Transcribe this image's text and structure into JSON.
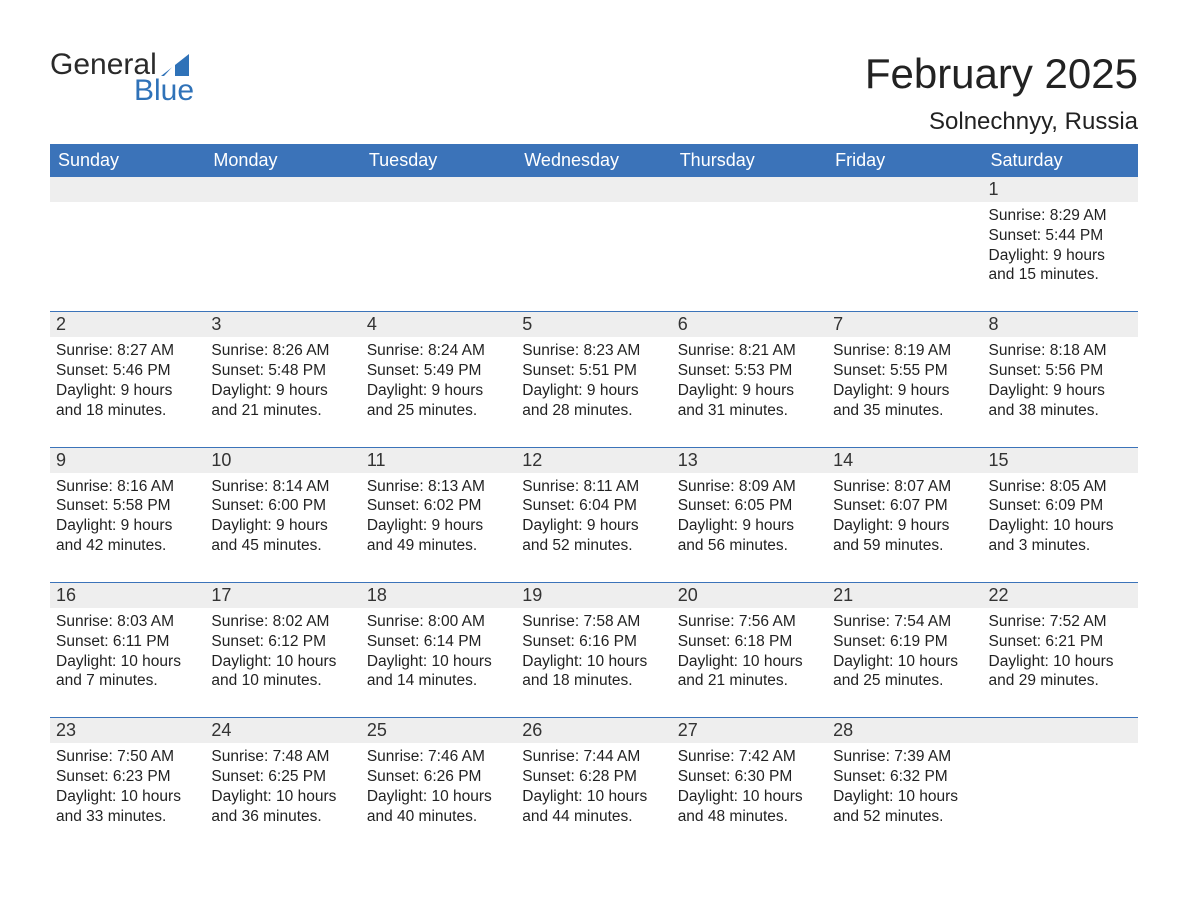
{
  "logo": {
    "word1": "General",
    "word2": "Blue"
  },
  "title": "February 2025",
  "location": "Solnechnyy, Russia",
  "weekdays": [
    "Sunday",
    "Monday",
    "Tuesday",
    "Wednesday",
    "Thursday",
    "Friday",
    "Saturday"
  ],
  "colors": {
    "header_bg": "#3b73b9",
    "header_text": "#ffffff",
    "daynum_bg": "#eeeeee",
    "row_sep": "#3b73b9",
    "brand_blue": "#2f72b8",
    "text": "#222222",
    "page_bg": "#ffffff"
  },
  "fonts": {
    "title_size_pt": 32,
    "location_size_pt": 18,
    "weekday_size_pt": 14,
    "daynum_size_pt": 14,
    "detail_size_pt": 12
  },
  "layout": {
    "columns": 7,
    "rows": 5,
    "first_day_column": 6
  },
  "weeks": [
    [
      null,
      null,
      null,
      null,
      null,
      null,
      {
        "day": 1,
        "sunrise": "8:29 AM",
        "sunset": "5:44 PM",
        "daylight": "9 hours and 15 minutes."
      }
    ],
    [
      {
        "day": 2,
        "sunrise": "8:27 AM",
        "sunset": "5:46 PM",
        "daylight": "9 hours and 18 minutes."
      },
      {
        "day": 3,
        "sunrise": "8:26 AM",
        "sunset": "5:48 PM",
        "daylight": "9 hours and 21 minutes."
      },
      {
        "day": 4,
        "sunrise": "8:24 AM",
        "sunset": "5:49 PM",
        "daylight": "9 hours and 25 minutes."
      },
      {
        "day": 5,
        "sunrise": "8:23 AM",
        "sunset": "5:51 PM",
        "daylight": "9 hours and 28 minutes."
      },
      {
        "day": 6,
        "sunrise": "8:21 AM",
        "sunset": "5:53 PM",
        "daylight": "9 hours and 31 minutes."
      },
      {
        "day": 7,
        "sunrise": "8:19 AM",
        "sunset": "5:55 PM",
        "daylight": "9 hours and 35 minutes."
      },
      {
        "day": 8,
        "sunrise": "8:18 AM",
        "sunset": "5:56 PM",
        "daylight": "9 hours and 38 minutes."
      }
    ],
    [
      {
        "day": 9,
        "sunrise": "8:16 AM",
        "sunset": "5:58 PM",
        "daylight": "9 hours and 42 minutes."
      },
      {
        "day": 10,
        "sunrise": "8:14 AM",
        "sunset": "6:00 PM",
        "daylight": "9 hours and 45 minutes."
      },
      {
        "day": 11,
        "sunrise": "8:13 AM",
        "sunset": "6:02 PM",
        "daylight": "9 hours and 49 minutes."
      },
      {
        "day": 12,
        "sunrise": "8:11 AM",
        "sunset": "6:04 PM",
        "daylight": "9 hours and 52 minutes."
      },
      {
        "day": 13,
        "sunrise": "8:09 AM",
        "sunset": "6:05 PM",
        "daylight": "9 hours and 56 minutes."
      },
      {
        "day": 14,
        "sunrise": "8:07 AM",
        "sunset": "6:07 PM",
        "daylight": "9 hours and 59 minutes."
      },
      {
        "day": 15,
        "sunrise": "8:05 AM",
        "sunset": "6:09 PM",
        "daylight": "10 hours and 3 minutes."
      }
    ],
    [
      {
        "day": 16,
        "sunrise": "8:03 AM",
        "sunset": "6:11 PM",
        "daylight": "10 hours and 7 minutes."
      },
      {
        "day": 17,
        "sunrise": "8:02 AM",
        "sunset": "6:12 PM",
        "daylight": "10 hours and 10 minutes."
      },
      {
        "day": 18,
        "sunrise": "8:00 AM",
        "sunset": "6:14 PM",
        "daylight": "10 hours and 14 minutes."
      },
      {
        "day": 19,
        "sunrise": "7:58 AM",
        "sunset": "6:16 PM",
        "daylight": "10 hours and 18 minutes."
      },
      {
        "day": 20,
        "sunrise": "7:56 AM",
        "sunset": "6:18 PM",
        "daylight": "10 hours and 21 minutes."
      },
      {
        "day": 21,
        "sunrise": "7:54 AM",
        "sunset": "6:19 PM",
        "daylight": "10 hours and 25 minutes."
      },
      {
        "day": 22,
        "sunrise": "7:52 AM",
        "sunset": "6:21 PM",
        "daylight": "10 hours and 29 minutes."
      }
    ],
    [
      {
        "day": 23,
        "sunrise": "7:50 AM",
        "sunset": "6:23 PM",
        "daylight": "10 hours and 33 minutes."
      },
      {
        "day": 24,
        "sunrise": "7:48 AM",
        "sunset": "6:25 PM",
        "daylight": "10 hours and 36 minutes."
      },
      {
        "day": 25,
        "sunrise": "7:46 AM",
        "sunset": "6:26 PM",
        "daylight": "10 hours and 40 minutes."
      },
      {
        "day": 26,
        "sunrise": "7:44 AM",
        "sunset": "6:28 PM",
        "daylight": "10 hours and 44 minutes."
      },
      {
        "day": 27,
        "sunrise": "7:42 AM",
        "sunset": "6:30 PM",
        "daylight": "10 hours and 48 minutes."
      },
      {
        "day": 28,
        "sunrise": "7:39 AM",
        "sunset": "6:32 PM",
        "daylight": "10 hours and 52 minutes."
      },
      null
    ]
  ],
  "labels": {
    "sunrise_prefix": "Sunrise: ",
    "sunset_prefix": "Sunset: ",
    "daylight_prefix": "Daylight: "
  }
}
